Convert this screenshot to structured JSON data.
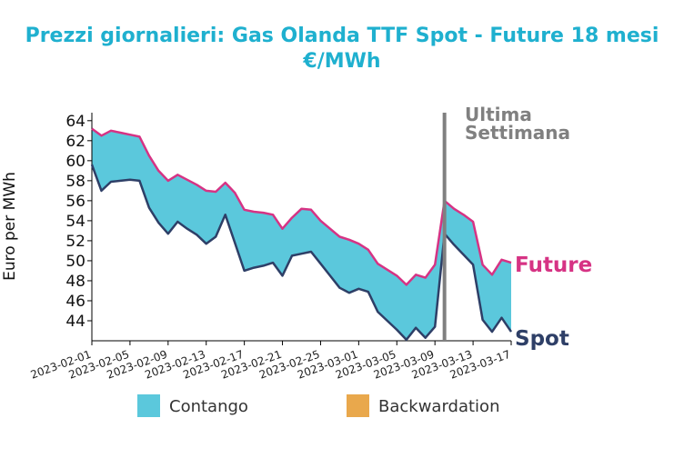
{
  "chart_data": {
    "type": "area",
    "title_line1": "Prezzi giornalieri: Gas Olanda TTF Spot - Future 18 mesi",
    "title_line2": "€/MWh",
    "ylabel": "Euro per MWh",
    "xlabel": "",
    "ylim": [
      42,
      64.8
    ],
    "yticks": [
      44,
      46,
      48,
      50,
      52,
      54,
      56,
      58,
      60,
      62,
      64
    ],
    "xlim": [
      "2023-02-01",
      "2023-03-17"
    ],
    "xticks": [
      "2023-02-01",
      "2023-02-05",
      "2023-02-09",
      "2023-02-13",
      "2023-02-17",
      "2023-02-21",
      "2023-02-25",
      "2023-03-01",
      "2023-03-05",
      "2023-03-09",
      "2023-03-13",
      "2023-03-17"
    ],
    "x": [
      "2023-02-01",
      "2023-02-02",
      "2023-02-03",
      "2023-02-04",
      "2023-02-05",
      "2023-02-06",
      "2023-02-07",
      "2023-02-08",
      "2023-02-09",
      "2023-02-10",
      "2023-02-11",
      "2023-02-12",
      "2023-02-13",
      "2023-02-14",
      "2023-02-15",
      "2023-02-16",
      "2023-02-17",
      "2023-02-18",
      "2023-02-19",
      "2023-02-20",
      "2023-02-21",
      "2023-02-22",
      "2023-02-23",
      "2023-02-24",
      "2023-02-25",
      "2023-02-26",
      "2023-02-27",
      "2023-02-28",
      "2023-03-01",
      "2023-03-02",
      "2023-03-03",
      "2023-03-04",
      "2023-03-05",
      "2023-03-06",
      "2023-03-07",
      "2023-03-08",
      "2023-03-09",
      "2023-03-10",
      "2023-03-11",
      "2023-03-12",
      "2023-03-13",
      "2023-03-14",
      "2023-03-15",
      "2023-03-16",
      "2023-03-17"
    ],
    "series": [
      {
        "name": "Future",
        "color": "#d63384",
        "values": [
          63.2,
          62.5,
          63.0,
          62.8,
          62.6,
          62.4,
          60.5,
          59.0,
          58.0,
          58.6,
          58.1,
          57.6,
          57.0,
          56.9,
          57.8,
          56.8,
          55.1,
          54.9,
          54.8,
          54.6,
          53.2,
          54.3,
          55.2,
          55.1,
          54.0,
          53.2,
          52.4,
          52.1,
          51.7,
          51.1,
          49.7,
          49.1,
          48.5,
          47.6,
          48.6,
          48.3,
          49.6,
          56.0,
          55.2,
          54.6,
          53.9,
          49.6,
          48.6,
          50.1,
          49.8
        ]
      },
      {
        "name": "Spot",
        "color": "#2e3f67",
        "values": [
          59.6,
          57.0,
          57.9,
          58.0,
          58.1,
          58.0,
          55.3,
          53.8,
          52.7,
          53.9,
          53.2,
          52.6,
          51.7,
          52.4,
          54.6,
          51.8,
          49.0,
          49.3,
          49.5,
          49.8,
          48.5,
          50.5,
          50.7,
          50.9,
          49.7,
          48.5,
          47.3,
          46.8,
          47.2,
          46.9,
          44.9,
          44.0,
          43.1,
          42.1,
          43.3,
          42.3,
          43.4,
          52.7,
          51.6,
          50.6,
          49.6,
          44.1,
          42.9,
          44.3,
          42.9
        ]
      }
    ],
    "annotation": {
      "date": "2023-03-10",
      "text_line1": "Ultima",
      "text_line2": "Settimana",
      "color": "#808080"
    },
    "legend": {
      "placement": "bottom",
      "items": [
        {
          "label": "Contango",
          "color": "#5bc8dc"
        },
        {
          "label": "Backwardation",
          "color": "#e9a84c"
        }
      ]
    },
    "end_labels": [
      {
        "text": "Future",
        "color": "#d63384"
      },
      {
        "text": "Spot",
        "color": "#2e3f67"
      }
    ],
    "fill_color": "#5bc8dc",
    "grid": false
  }
}
